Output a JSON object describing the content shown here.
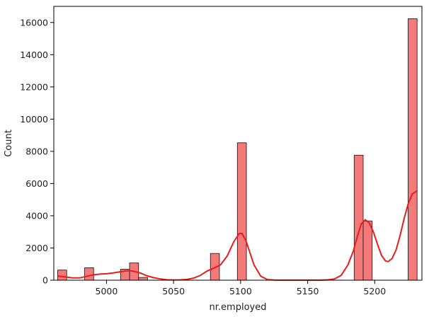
{
  "chart_data": {
    "type": "bar",
    "title": "",
    "xlabel": "nr.employed",
    "ylabel": "Count",
    "xlim": [
      4960.7,
      5235.2
    ],
    "ylim": [
      0,
      17000
    ],
    "xticks": [
      5000,
      5050,
      5100,
      5150,
      5200
    ],
    "yticks": [
      0,
      2000,
      4000,
      6000,
      8000,
      10000,
      12000,
      14000,
      16000
    ],
    "grid": false,
    "legend": "none",
    "colors": {
      "bar_fill": "#f47a7a",
      "bar_edge": "#222222",
      "kde_line": "#e81c1c"
    },
    "bins": [
      {
        "start": 4963.6,
        "end": 4970.3,
        "count": 630
      },
      {
        "start": 4970.3,
        "end": 4977.0,
        "count": 0
      },
      {
        "start": 4977.0,
        "end": 4983.7,
        "count": 0
      },
      {
        "start": 4983.7,
        "end": 4990.4,
        "count": 770
      },
      {
        "start": 4990.4,
        "end": 4997.1,
        "count": 0
      },
      {
        "start": 4997.1,
        "end": 5003.8,
        "count": 0
      },
      {
        "start": 5003.8,
        "end": 5010.5,
        "count": 0
      },
      {
        "start": 5010.5,
        "end": 5017.2,
        "count": 680
      },
      {
        "start": 5017.2,
        "end": 5023.9,
        "count": 1070
      },
      {
        "start": 5023.9,
        "end": 5030.6,
        "count": 170
      },
      {
        "start": 5030.6,
        "end": 5037.3,
        "count": 0
      },
      {
        "start": 5037.3,
        "end": 5044.0,
        "count": 0
      },
      {
        "start": 5044.0,
        "end": 5050.7,
        "count": 0
      },
      {
        "start": 5050.7,
        "end": 5057.4,
        "count": 0
      },
      {
        "start": 5057.4,
        "end": 5064.1,
        "count": 0
      },
      {
        "start": 5064.1,
        "end": 5070.8,
        "count": 0
      },
      {
        "start": 5070.8,
        "end": 5077.5,
        "count": 0
      },
      {
        "start": 5077.5,
        "end": 5084.2,
        "count": 1660
      },
      {
        "start": 5084.2,
        "end": 5090.9,
        "count": 0
      },
      {
        "start": 5090.9,
        "end": 5097.6,
        "count": 0
      },
      {
        "start": 5097.6,
        "end": 5104.3,
        "count": 8530
      },
      {
        "start": 5104.3,
        "end": 5111.0,
        "count": 0
      },
      {
        "start": 5111.0,
        "end": 5117.7,
        "count": 0
      },
      {
        "start": 5117.7,
        "end": 5124.4,
        "count": 0
      },
      {
        "start": 5124.4,
        "end": 5131.1,
        "count": 0
      },
      {
        "start": 5131.1,
        "end": 5137.8,
        "count": 0
      },
      {
        "start": 5137.8,
        "end": 5144.5,
        "count": 0
      },
      {
        "start": 5144.5,
        "end": 5151.2,
        "count": 0
      },
      {
        "start": 5151.2,
        "end": 5157.9,
        "count": 0
      },
      {
        "start": 5157.9,
        "end": 5164.6,
        "count": 0
      },
      {
        "start": 5164.6,
        "end": 5171.3,
        "count": 0
      },
      {
        "start": 5171.3,
        "end": 5178.0,
        "count": 0
      },
      {
        "start": 5178.0,
        "end": 5184.7,
        "count": 0
      },
      {
        "start": 5184.7,
        "end": 5191.4,
        "count": 7760
      },
      {
        "start": 5191.4,
        "end": 5198.1,
        "count": 3680
      },
      {
        "start": 5198.1,
        "end": 5204.8,
        "count": 0
      },
      {
        "start": 5204.8,
        "end": 5211.5,
        "count": 0
      },
      {
        "start": 5211.5,
        "end": 5218.2,
        "count": 0
      },
      {
        "start": 5218.2,
        "end": 5224.9,
        "count": 0
      },
      {
        "start": 5224.9,
        "end": 5231.6,
        "count": 16230
      }
    ],
    "kde": {
      "x": [
        4963.6,
        4970,
        4975,
        4980,
        4985,
        4990,
        4995,
        5000,
        5005,
        5010,
        5015,
        5018,
        5021,
        5025,
        5030,
        5035,
        5040,
        5045,
        5050,
        5055,
        5060,
        5065,
        5070,
        5075,
        5080,
        5085,
        5090,
        5095,
        5099,
        5101,
        5104,
        5107,
        5110,
        5115,
        5120,
        5125,
        5130,
        5135,
        5140,
        5145,
        5150,
        5155,
        5160,
        5165,
        5170,
        5175,
        5180,
        5184,
        5187,
        5190,
        5193,
        5196,
        5199,
        5202,
        5205,
        5208,
        5210,
        5213,
        5216,
        5219,
        5222,
        5225,
        5228,
        5231.6
      ],
      "y": [
        260,
        200,
        140,
        140,
        240,
        330,
        380,
        400,
        450,
        520,
        580,
        580,
        540,
        450,
        280,
        160,
        80,
        30,
        15,
        20,
        50,
        130,
        300,
        570,
        750,
        950,
        1500,
        2400,
        2900,
        2900,
        2450,
        1700,
        950,
        250,
        40,
        10,
        5,
        5,
        5,
        5,
        5,
        5,
        5,
        20,
        80,
        300,
        950,
        1800,
        2700,
        3500,
        3750,
        3550,
        3000,
        2250,
        1550,
        1200,
        1150,
        1350,
        1900,
        2800,
        3850,
        4750,
        5350,
        5550
      ]
    }
  }
}
